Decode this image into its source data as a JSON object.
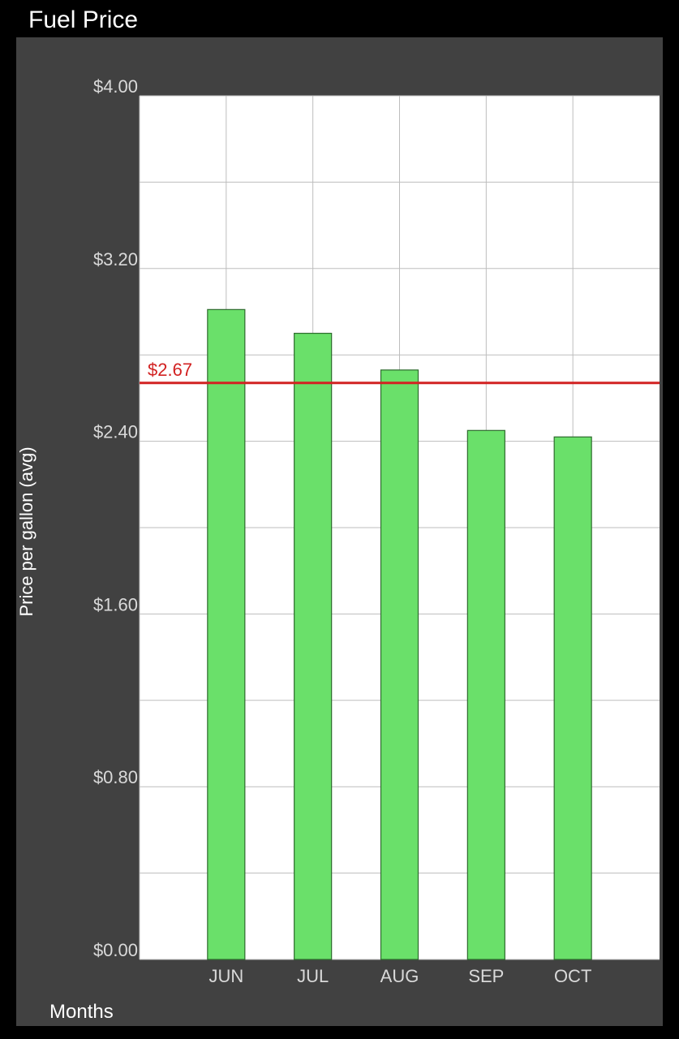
{
  "app": {
    "title": "Fuel Price"
  },
  "colors": {
    "background": "#000000",
    "panel": "#414141",
    "plot_area": "#ffffff",
    "grid": "#bdbdbd",
    "bar_fill": "#6ae06a",
    "bar_stroke": "#2d6b2d",
    "average_line": "#d22222",
    "tick_label": "#d9d9d9"
  },
  "chart_data": {
    "type": "bar",
    "title": "Fuel Price",
    "xlabel": "Months",
    "ylabel": "Price per gallon (avg)",
    "categories": [
      "JUN",
      "JUL",
      "AUG",
      "SEP",
      "OCT"
    ],
    "series": [
      {
        "values": [
          3.01,
          2.9,
          2.73,
          2.45,
          2.42
        ]
      }
    ],
    "ylim": [
      0,
      4
    ],
    "y_ticks": [
      0,
      0.8,
      1.6,
      2.4,
      3.2,
      4.0
    ],
    "y_tick_labels": [
      "$0.00",
      "$0.80",
      "$1.60",
      "$2.40",
      "$3.20",
      "$4.00"
    ],
    "grid": true,
    "reference_line": {
      "value": 2.67,
      "label": "$2.67"
    }
  }
}
